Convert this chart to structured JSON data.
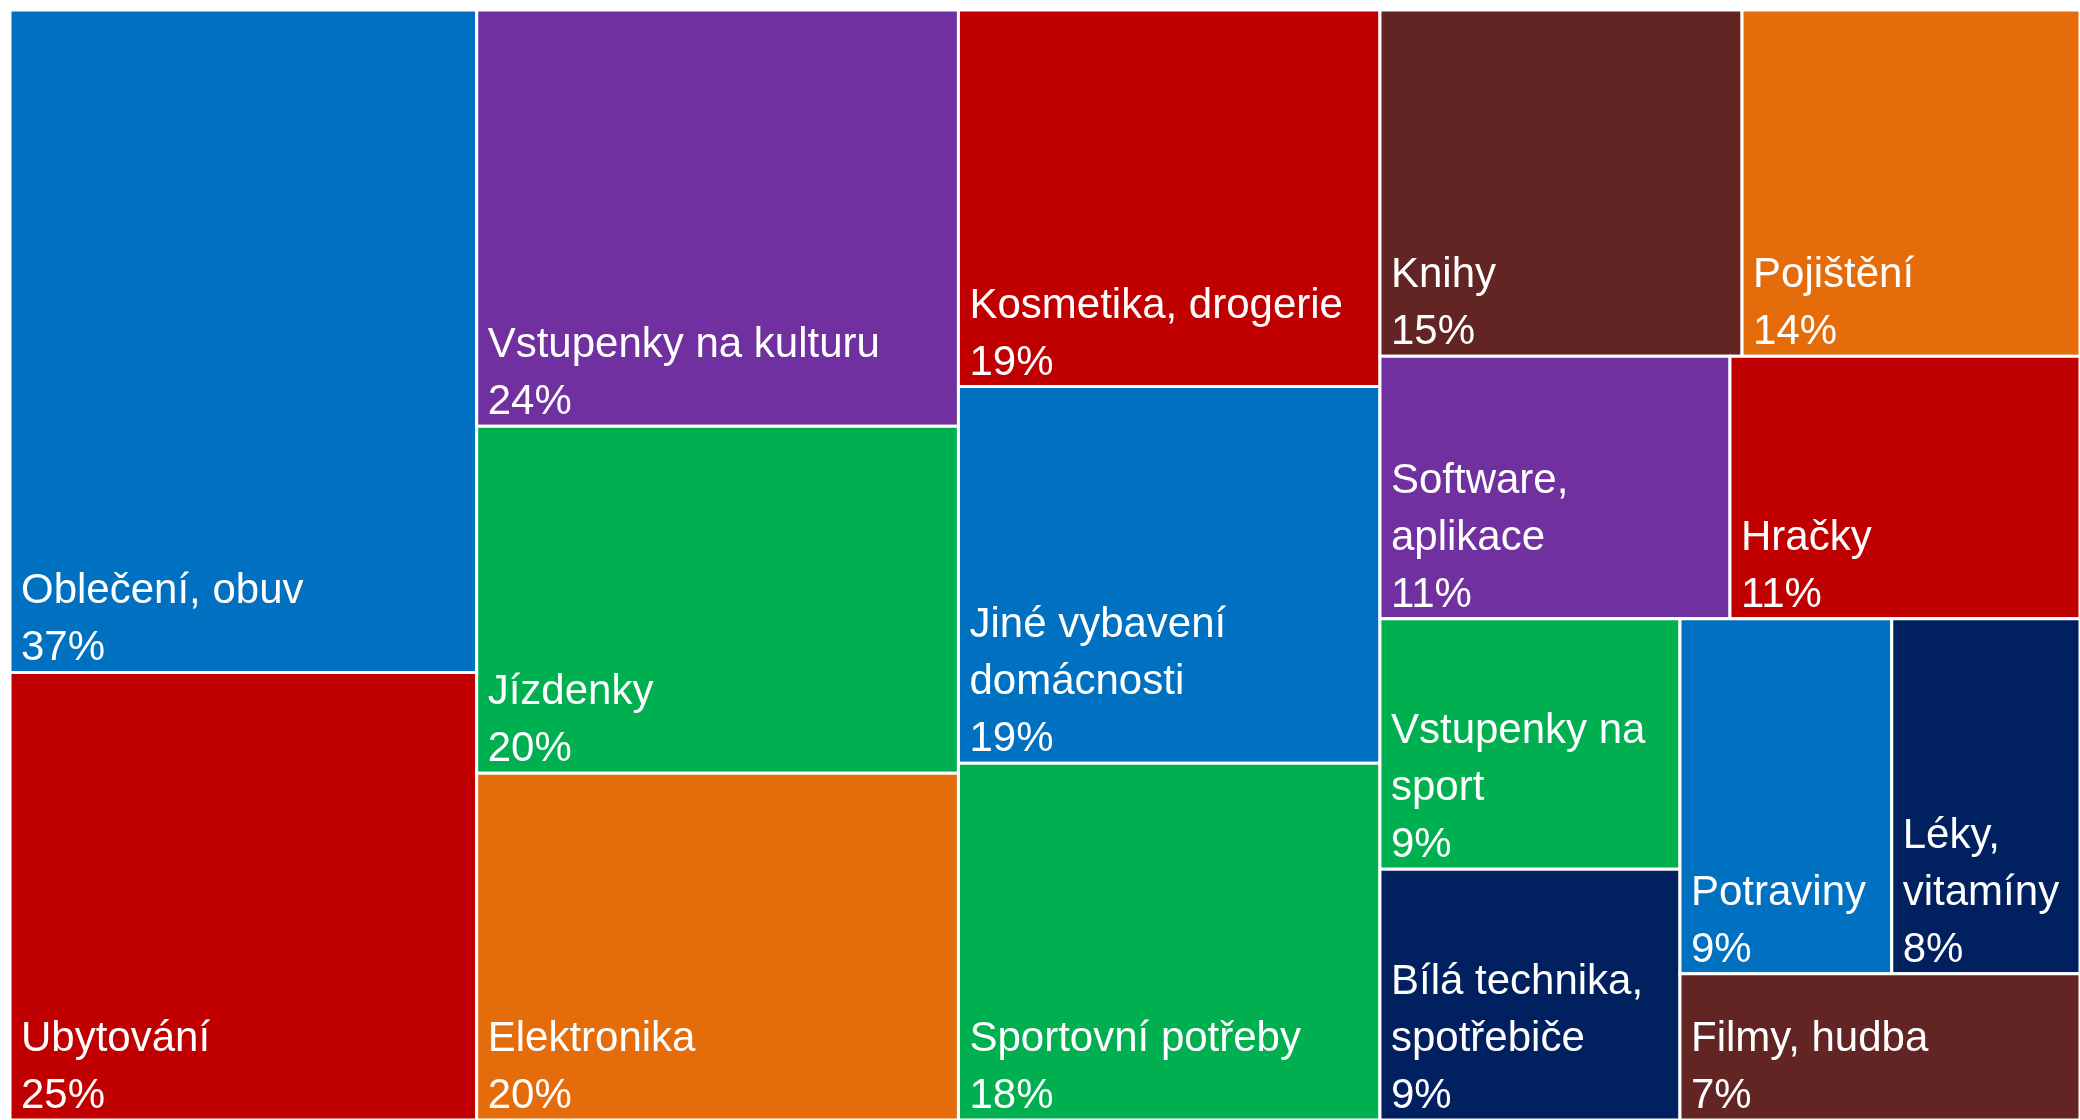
{
  "chart_data": {
    "type": "other",
    "categories": [
      "Oblečení, obuv",
      "Ubytování",
      "Vstupenky na kulturu",
      "Jízdenky",
      "Elektronika",
      "Kosmetika, drogerie",
      "Jiné vybavení domácnosti",
      "Sportovní potřeby",
      "Knihy",
      "Pojištění",
      "Software, aplikace",
      "Hračky",
      "Vstupenky na sport",
      "Bílá technika, spotřebiče",
      "Potraviny",
      "Léky, vitamíny",
      "Filmy, hudba"
    ],
    "values": [
      37,
      25,
      24,
      20,
      20,
      19,
      19,
      18,
      15,
      14,
      11,
      11,
      9,
      9,
      9,
      8,
      7
    ],
    "value_labels": [
      "37%",
      "25%",
      "24%",
      "20%",
      "20%",
      "19%",
      "19%",
      "18%",
      "15%",
      "14%",
      "11%",
      "11%",
      "9%",
      "9%",
      "9%",
      "8%",
      "7%"
    ],
    "colors": [
      "#0070c0",
      "#c00000",
      "#7030a0",
      "#00b050",
      "#e46c0a",
      "#c00000",
      "#0070c0",
      "#00b050",
      "#632523",
      "#e46c0a",
      "#7030a0",
      "#c00000",
      "#00b050",
      "#002060",
      "#0070c0",
      "#002060",
      "#632523"
    ]
  }
}
